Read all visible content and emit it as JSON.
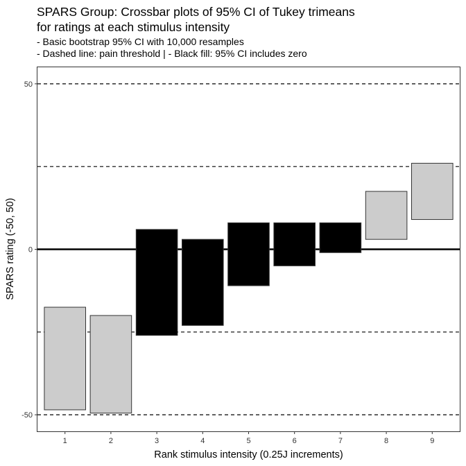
{
  "chart_data": {
    "type": "crossbar",
    "title_line1": "SPARS Group: Crossbar plots of 95% CI of Tukey trimeans",
    "title_line2": "for ratings at each stimulus intensity",
    "subtitle_line1": "- Basic bootstrap 95% CI with 10,000 resamples",
    "subtitle_line2": "- Dashed line: pain threshold | - Black fill: 95% CI includes zero",
    "xlabel": "Rank stimulus intensity (0.25J increments)",
    "ylabel": "SPARS rating (-50, 50)",
    "ylim": [
      -55,
      55
    ],
    "yticks": [
      -50,
      0,
      50
    ],
    "ytick_labels": [
      "-50",
      "0",
      "50"
    ],
    "categories": [
      "1",
      "2",
      "3",
      "4",
      "5",
      "6",
      "7",
      "8",
      "9"
    ],
    "ci_lower": [
      -48.5,
      -49.5,
      -26,
      -23,
      -11,
      -5,
      -1,
      3,
      9
    ],
    "ci_upper": [
      -17.5,
      -20,
      6,
      3,
      8,
      8,
      8,
      17.5,
      26
    ],
    "includes_zero": [
      false,
      false,
      true,
      true,
      true,
      true,
      true,
      false,
      false
    ],
    "reference_lines": {
      "dashed": [
        -50,
        -25,
        25,
        50
      ],
      "solid": [
        0
      ]
    },
    "colors": {
      "fill_excludes_zero": "#cccccc",
      "fill_includes_zero": "#000000",
      "bar_outline": "#333333",
      "panel_border": "#333333"
    }
  }
}
